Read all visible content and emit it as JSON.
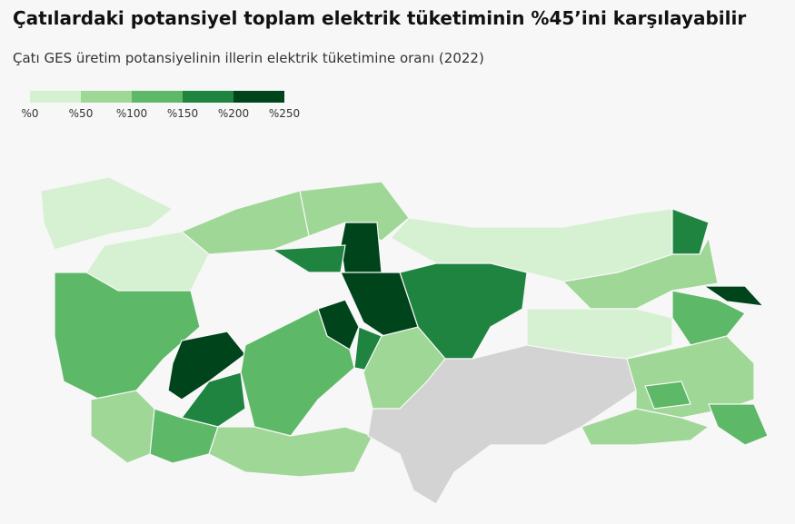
{
  "header": {
    "title": "Çatılardaki potansiyel toplam elektrik tüketiminin %45’ini karşılayabilir",
    "subtitle": "Çatı GES üretim potansiyelinin illerin elektrik tüketimine oranı (2022)"
  },
  "legend": {
    "labels": [
      "%0",
      "%50",
      "%100",
      "%150",
      "%200",
      "%250"
    ],
    "colors": [
      "#d6f0d2",
      "#9fd796",
      "#5db867",
      "#1e8440",
      "#00441b"
    ],
    "no_data_color": "#d3d3d3"
  }
}
